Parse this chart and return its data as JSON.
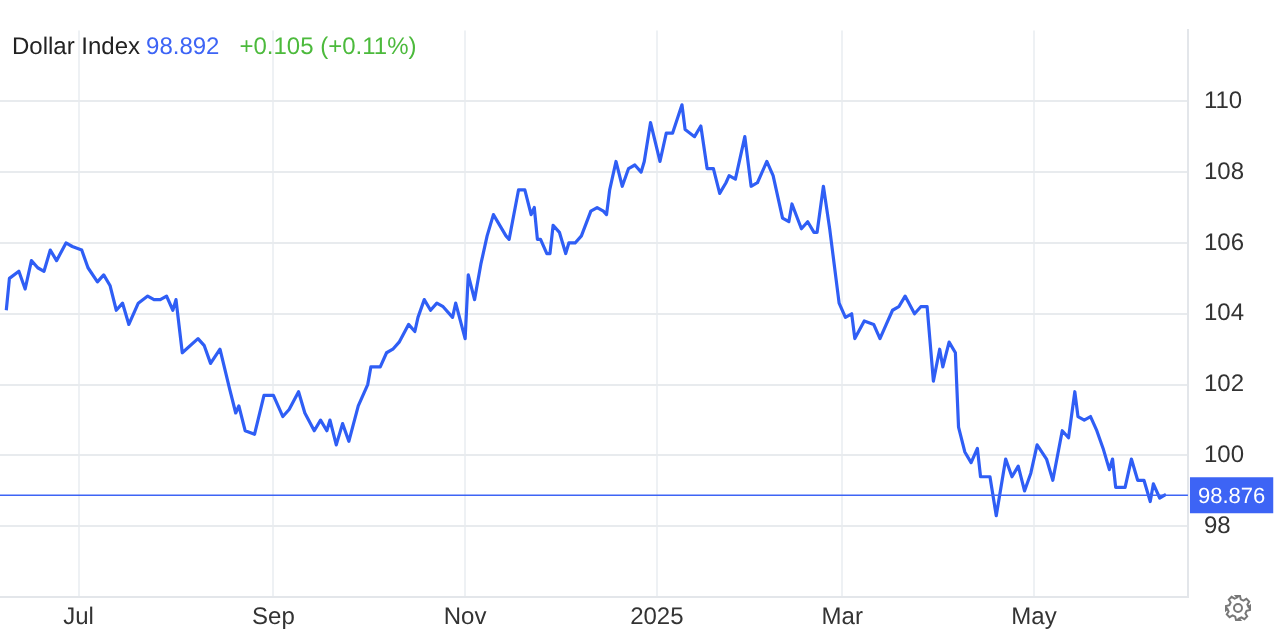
{
  "chart_data": {
    "type": "line",
    "title": "Dollar Index",
    "subtitle": "98.892",
    "annotations": [
      "+0.105 (+0.11%)"
    ],
    "xlim": [
      "2024-06-06",
      "2025-06-19"
    ],
    "xticks": [
      {
        "value": "2024-07-01",
        "label": "Jul"
      },
      {
        "value": "2024-09-01",
        "label": "Sep"
      },
      {
        "value": "2024-11-01",
        "label": "Nov"
      },
      {
        "value": "2025-01-01",
        "label": "2025"
      },
      {
        "value": "2025-03-01",
        "label": "Mar"
      },
      {
        "value": "2025-05-01",
        "label": "May"
      }
    ],
    "ylim": [
      96,
      112
    ],
    "yticks": [
      98,
      100,
      102,
      104,
      106,
      108,
      110
    ],
    "grid": true,
    "legend": false,
    "marker": "none",
    "line_style": "solid",
    "ref_lines": [
      {
        "axis": "y",
        "value": 98.876,
        "label": "98.876",
        "color": "#3d64f5"
      }
    ],
    "series": [
      {
        "color": "#2f5ef5",
        "x": [
          "2024-06-08",
          "2024-06-09",
          "2024-06-12",
          "2024-06-14",
          "2024-06-16",
          "2024-06-18",
          "2024-06-20",
          "2024-06-22",
          "2024-06-24",
          "2024-06-27",
          "2024-06-29",
          "2024-07-02",
          "2024-07-04",
          "2024-07-07",
          "2024-07-09",
          "2024-07-11",
          "2024-07-13",
          "2024-07-15",
          "2024-07-17",
          "2024-07-20",
          "2024-07-23",
          "2024-07-25",
          "2024-07-27",
          "2024-07-29",
          "2024-07-31",
          "2024-08-01",
          "2024-08-03",
          "2024-08-08",
          "2024-08-10",
          "2024-08-12",
          "2024-08-15",
          "2024-08-18",
          "2024-08-20",
          "2024-08-21",
          "2024-08-23",
          "2024-08-26",
          "2024-08-29",
          "2024-09-01",
          "2024-09-04",
          "2024-09-06",
          "2024-09-09",
          "2024-09-11",
          "2024-09-14",
          "2024-09-16",
          "2024-09-18",
          "2024-09-19",
          "2024-09-21",
          "2024-09-23",
          "2024-09-25",
          "2024-09-28",
          "2024-10-01",
          "2024-10-02",
          "2024-10-05",
          "2024-10-07",
          "2024-10-09",
          "2024-10-11",
          "2024-10-14",
          "2024-10-16",
          "2024-10-17",
          "2024-10-19",
          "2024-10-21",
          "2024-10-23",
          "2024-10-25",
          "2024-10-28",
          "2024-10-29",
          "2024-11-01",
          "2024-11-02",
          "2024-11-04",
          "2024-11-06",
          "2024-11-08",
          "2024-11-10",
          "2024-11-14",
          "2024-11-15",
          "2024-11-18",
          "2024-11-20",
          "2024-11-22",
          "2024-11-23",
          "2024-11-24",
          "2024-11-25",
          "2024-11-27",
          "2024-11-28",
          "2024-11-29",
          "2024-12-01",
          "2024-12-03",
          "2024-12-04",
          "2024-12-06",
          "2024-12-08",
          "2024-12-11",
          "2024-12-13",
          "2024-12-15",
          "2024-12-16",
          "2024-12-17",
          "2024-12-19",
          "2024-12-21",
          "2024-12-23",
          "2024-12-25",
          "2024-12-27",
          "2024-12-28",
          "2024-12-30",
          "2025-01-02",
          "2025-01-04",
          "2025-01-06",
          "2025-01-09",
          "2025-01-10",
          "2025-01-13",
          "2025-01-15",
          "2025-01-17",
          "2025-01-19",
          "2025-01-21",
          "2025-01-23",
          "2025-01-24",
          "2025-01-26",
          "2025-01-29",
          "2025-01-31",
          "2025-02-02",
          "2025-02-05",
          "2025-02-07",
          "2025-02-10",
          "2025-02-12",
          "2025-02-13",
          "2025-02-16",
          "2025-02-18",
          "2025-02-20",
          "2025-02-21",
          "2025-02-23",
          "2025-02-25",
          "2025-02-28",
          "2025-03-02",
          "2025-03-04",
          "2025-03-05",
          "2025-03-08",
          "2025-03-11",
          "2025-03-13",
          "2025-03-15",
          "2025-03-17",
          "2025-03-19",
          "2025-03-21",
          "2025-03-24",
          "2025-03-26",
          "2025-03-28",
          "2025-03-30",
          "2025-04-01",
          "2025-04-02",
          "2025-04-04",
          "2025-04-06",
          "2025-04-07",
          "2025-04-09",
          "2025-04-11",
          "2025-04-13",
          "2025-04-14",
          "2025-04-17",
          "2025-04-19",
          "2025-04-22",
          "2025-04-24",
          "2025-04-26",
          "2025-04-28",
          "2025-04-30",
          "2025-05-02",
          "2025-05-05",
          "2025-05-07",
          "2025-05-10",
          "2025-05-12",
          "2025-05-14",
          "2025-05-15",
          "2025-05-17",
          "2025-05-19",
          "2025-05-21",
          "2025-05-23",
          "2025-05-25",
          "2025-05-26",
          "2025-05-27",
          "2025-05-30",
          "2025-06-01",
          "2025-06-03",
          "2025-06-05",
          "2025-06-07",
          "2025-06-08",
          "2025-06-10",
          "2025-06-12"
        ],
        "values": [
          104.1,
          105.0,
          105.2,
          104.7,
          105.5,
          105.3,
          105.2,
          105.8,
          105.5,
          106.0,
          105.9,
          105.8,
          105.3,
          104.9,
          105.1,
          104.8,
          104.1,
          104.3,
          103.7,
          104.3,
          104.5,
          104.4,
          104.4,
          104.5,
          104.1,
          104.4,
          102.9,
          103.3,
          103.1,
          102.6,
          103.0,
          101.9,
          101.2,
          101.4,
          100.7,
          100.6,
          101.7,
          101.7,
          101.1,
          101.3,
          101.8,
          101.2,
          100.7,
          101.0,
          100.7,
          101.0,
          100.3,
          100.9,
          100.4,
          101.4,
          102.0,
          102.5,
          102.5,
          102.9,
          103.0,
          103.2,
          103.7,
          103.5,
          103.9,
          104.4,
          104.1,
          104.3,
          104.2,
          103.9,
          104.3,
          103.3,
          105.1,
          104.4,
          105.4,
          106.2,
          106.8,
          106.2,
          106.1,
          107.5,
          107.5,
          106.8,
          107.0,
          106.1,
          106.1,
          105.7,
          105.7,
          106.5,
          106.3,
          105.7,
          106.0,
          106.0,
          106.2,
          106.9,
          107.0,
          106.9,
          106.8,
          107.5,
          108.3,
          107.6,
          108.1,
          108.2,
          108.0,
          108.3,
          109.4,
          108.3,
          109.1,
          109.1,
          109.9,
          109.2,
          109.0,
          109.3,
          108.1,
          108.1,
          107.4,
          107.7,
          107.9,
          107.8,
          109.0,
          107.6,
          107.7,
          108.3,
          107.9,
          106.7,
          106.6,
          107.1,
          106.4,
          106.6,
          106.3,
          106.3,
          107.6,
          106.4,
          104.3,
          103.9,
          104.0,
          103.3,
          103.8,
          103.7,
          103.3,
          103.7,
          104.1,
          104.2,
          104.5,
          104.0,
          104.2,
          104.2,
          102.1,
          103.0,
          102.5,
          103.2,
          102.9,
          100.8,
          100.1,
          99.8,
          100.2,
          99.4,
          99.4,
          98.3,
          99.9,
          99.4,
          99.7,
          99.0,
          99.5,
          100.3,
          99.9,
          99.3,
          100.7,
          100.5,
          101.8,
          101.1,
          101.0,
          101.1,
          100.7,
          100.2,
          99.6,
          99.9,
          99.1,
          99.1,
          99.9,
          99.3,
          99.3,
          98.7,
          99.2,
          98.8,
          98.9
        ]
      }
    ]
  }
}
